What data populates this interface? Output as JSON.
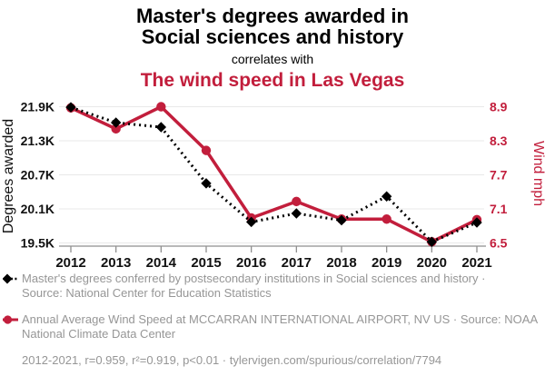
{
  "header": {
    "title_lines": [
      "Master's degrees awarded in",
      "Social sciences and history"
    ],
    "subtitle": "correlates with",
    "secondary_title": "The wind speed in Las Vegas"
  },
  "colors": {
    "accent_red": "#c21e3c",
    "series_black": "#000000",
    "legend_gray": "#969696",
    "grid": "#e9e9e9",
    "axis": "#8f8f8f"
  },
  "chart_data": {
    "type": "line",
    "x": [
      2012,
      2013,
      2014,
      2015,
      2016,
      2017,
      2018,
      2019,
      2020,
      2021
    ],
    "x_tick_labels": [
      "2012",
      "2013",
      "2014",
      "2015",
      "2016",
      "2017",
      "2018",
      "2019",
      "2020",
      "2021"
    ],
    "series": [
      {
        "name": "Master's degrees conferred by postsecondary institutions in Social sciences and history",
        "axis": "left",
        "color": "#000000",
        "style": "dotted-diamond",
        "values": [
          21890,
          21620,
          21540,
          20550,
          19870,
          20020,
          19900,
          20320,
          19520,
          19860
        ]
      },
      {
        "name": "Annual Average Wind Speed at MCCARRAN INTERNATIONAL AIRPORT, NV US",
        "axis": "right",
        "color": "#c21e3c",
        "style": "solid-circle",
        "values": [
          8.88,
          8.51,
          8.9,
          8.13,
          6.94,
          7.23,
          6.92,
          6.92,
          6.52,
          6.91
        ]
      }
    ],
    "left_axis": {
      "label": "Degrees awarded",
      "tick_labels": [
        "21.9K",
        "21.3K",
        "20.7K",
        "20.1K",
        "19.5K"
      ],
      "tick_values": [
        21900,
        21300,
        20700,
        20100,
        19500
      ],
      "range": [
        19500,
        21900
      ]
    },
    "right_axis": {
      "label": "Wind mph",
      "tick_labels": [
        "8.9",
        "8.3",
        "7.7",
        "7.1",
        "6.5"
      ],
      "tick_values": [
        8.9,
        8.3,
        7.7,
        7.1,
        6.5
      ],
      "range": [
        6.5,
        8.9
      ]
    },
    "grid": true,
    "legend_position": "bottom"
  },
  "legend": {
    "items": [
      {
        "marker": "black-diamond-dotted",
        "label": "Master's degrees conferred by postsecondary institutions in Social sciences and history · Source: National Center for Education Statistics"
      },
      {
        "marker": "red-circle-line",
        "label": "Annual Average Wind Speed at MCCARRAN INTERNATIONAL AIRPORT, NV US · Source: NOAA National Climate Data Center"
      }
    ]
  },
  "footer": {
    "stats": "2012-2021, r=0.959, r²=0.919, p<0.01 · tylervigen.com/spurious/correlation/7794"
  }
}
